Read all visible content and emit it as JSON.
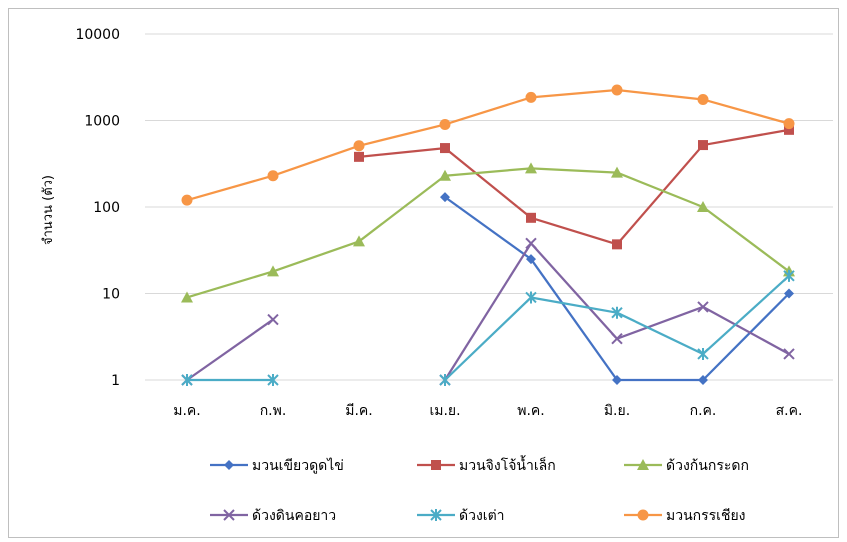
{
  "chart_data": {
    "type": "line",
    "title": "",
    "xlabel": "",
    "ylabel": "จำนวน (ตัว)",
    "yscale": "log",
    "ylim": [
      1,
      10000
    ],
    "y_ticks": [
      "1",
      "10",
      "100",
      "1000",
      "10000"
    ],
    "grid": true,
    "legend_position": "bottom",
    "categories": [
      "ม.ค.",
      "ก.พ.",
      "มี.ค.",
      "เม.ย.",
      "พ.ค.",
      "มิ.ย.",
      "ก.ค.",
      "ส.ค."
    ],
    "series": [
      {
        "name": "มวนเขียวดูดไข่",
        "color": "#4472c4",
        "marker": "diamond",
        "values": [
          null,
          null,
          null,
          130,
          25,
          1,
          1,
          10
        ]
      },
      {
        "name": "มวนจิงโจ้น้ำเล็ก",
        "color": "#c0504d",
        "marker": "square",
        "values": [
          null,
          null,
          380,
          480,
          75,
          37,
          520,
          780
        ]
      },
      {
        "name": "ด้วงก้นกระดก",
        "color": "#9bbb59",
        "marker": "triangle",
        "values": [
          9,
          18,
          40,
          230,
          280,
          250,
          100,
          18
        ]
      },
      {
        "name": "ด้วงดินคอยาว",
        "color": "#8064a2",
        "marker": "x",
        "values": [
          1,
          5,
          null,
          1,
          38,
          3,
          7,
          2
        ]
      },
      {
        "name": "ด้วงเต่า",
        "color": "#4bacc6",
        "marker": "star",
        "values": [
          1,
          1,
          null,
          1,
          9,
          6,
          2,
          16
        ]
      },
      {
        "name": "มวนกรรเชียง",
        "color": "#f79646",
        "marker": "circle",
        "values": [
          120,
          230,
          510,
          900,
          1850,
          2250,
          1750,
          920
        ]
      }
    ]
  }
}
